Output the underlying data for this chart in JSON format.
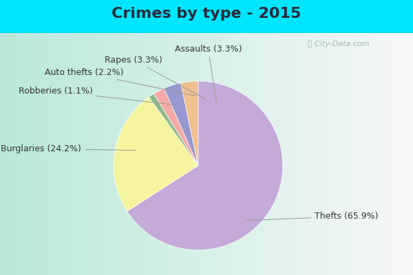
{
  "title": "Crimes by type - 2015",
  "plot_values": [
    65.9,
    24.2,
    1.1,
    2.2,
    3.3,
    3.3
  ],
  "plot_colors": [
    "#c4aad8",
    "#f5f5a0",
    "#8db88d",
    "#f4a8a8",
    "#9898d0",
    "#f0c090"
  ],
  "plot_labels": [
    "Thefts (65.9%)",
    "Burglaries (24.2%)",
    "Robberies (1.1%)",
    "Auto thefts (2.2%)",
    "Rapes (3.3%)",
    "Assaults (3.3%)"
  ],
  "bg_color_cyan": "#00e5ff",
  "bg_gradient_left": "#b8e8d8",
  "bg_gradient_right": "#e8f0f0",
  "title_fontsize": 16,
  "label_fontsize": 9,
  "watermark": "ⓘ City-Data.com"
}
